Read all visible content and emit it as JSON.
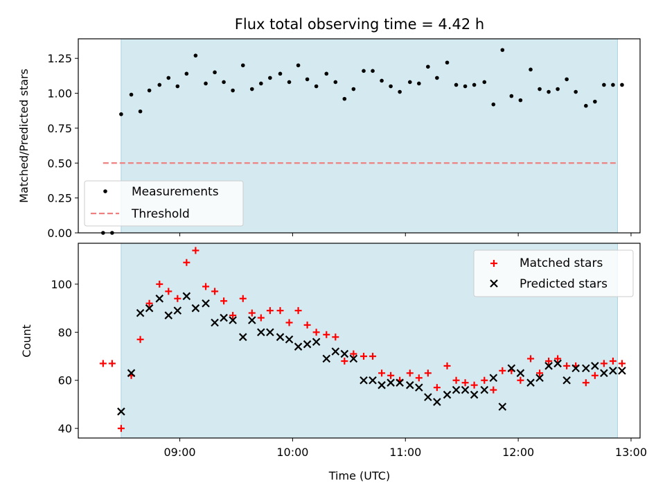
{
  "title": "Flux total observing time = 4.42 h",
  "xlabel": "Time (UTC)",
  "time_ticks": [
    {
      "t": 9,
      "label": "09:00"
    },
    {
      "t": 10,
      "label": "10:00"
    },
    {
      "t": 11,
      "label": "11:00"
    },
    {
      "t": 12,
      "label": "12:00"
    },
    {
      "t": 13,
      "label": "13:00"
    }
  ],
  "colors": {
    "shade": "#d4eaf0",
    "threshold": "#f08080",
    "matched": "#ff0000",
    "predicted": "#000000",
    "measurement": "#000000"
  },
  "chart_data": [
    {
      "type": "scatter",
      "name": "ratio",
      "ylabel": "Matched/Predicted stars",
      "xlim": [
        8.1,
        13.08
      ],
      "ylim": [
        0.0,
        1.39
      ],
      "shaded_interval": [
        8.48,
        12.88
      ],
      "yticks": [
        0.0,
        0.25,
        0.5,
        0.75,
        1.0,
        1.25
      ],
      "ytick_labels": [
        "0.00",
        "0.25",
        "0.50",
        "0.75",
        "1.00",
        "1.25"
      ],
      "legend": {
        "position": "lower-left",
        "entries": [
          "Measurements",
          "Threshold"
        ]
      },
      "threshold": {
        "name": "Threshold",
        "y": 0.5,
        "x": [
          8.32,
          12.88
        ]
      },
      "series": [
        {
          "name": "Measurements",
          "x": [
            8.32,
            8.4,
            8.48,
            8.57,
            8.65,
            8.73,
            8.82,
            8.9,
            8.98,
            9.06,
            9.14,
            9.23,
            9.31,
            9.39,
            9.47,
            9.56,
            9.64,
            9.72,
            9.8,
            9.89,
            9.97,
            10.05,
            10.13,
            10.21,
            10.3,
            10.38,
            10.46,
            10.54,
            10.63,
            10.71,
            10.79,
            10.87,
            10.95,
            11.04,
            11.12,
            11.2,
            11.28,
            11.37,
            11.45,
            11.53,
            11.61,
            11.7,
            11.78,
            11.86,
            11.94,
            12.02,
            12.11,
            12.19,
            12.27,
            12.35,
            12.43,
            12.51,
            12.6,
            12.68,
            12.76,
            12.84,
            12.92
          ],
          "y": [
            0.0,
            0.0,
            0.85,
            0.99,
            0.87,
            1.02,
            1.06,
            1.11,
            1.05,
            1.14,
            1.27,
            1.07,
            1.15,
            1.08,
            1.02,
            1.2,
            1.03,
            1.07,
            1.11,
            1.14,
            1.08,
            1.2,
            1.1,
            1.05,
            1.14,
            1.08,
            0.96,
            1.03,
            1.16,
            1.16,
            1.09,
            1.05,
            1.01,
            1.08,
            1.07,
            1.19,
            1.11,
            1.22,
            1.06,
            1.05,
            1.06,
            1.08,
            0.92,
            1.31,
            0.98,
            0.95,
            1.17,
            1.03,
            1.01,
            1.03,
            1.1,
            1.01,
            0.91,
            0.94,
            1.06,
            1.06,
            1.06
          ]
        }
      ]
    },
    {
      "type": "scatter",
      "name": "counts",
      "ylabel": "Count",
      "xlim": [
        8.1,
        13.08
      ],
      "ylim": [
        36,
        117
      ],
      "shaded_interval": [
        8.48,
        12.88
      ],
      "yticks": [
        40,
        60,
        80,
        100
      ],
      "ytick_labels": [
        "40",
        "60",
        "80",
        "100"
      ],
      "legend": {
        "position": "top-right",
        "entries": [
          "Matched stars",
          "Predicted stars"
        ]
      },
      "series": [
        {
          "name": "Matched stars",
          "marker": "plus",
          "x": [
            8.32,
            8.4,
            8.48,
            8.57,
            8.65,
            8.73,
            8.82,
            8.9,
            8.98,
            9.06,
            9.14,
            9.23,
            9.31,
            9.39,
            9.47,
            9.56,
            9.64,
            9.72,
            9.8,
            9.89,
            9.97,
            10.05,
            10.13,
            10.21,
            10.3,
            10.38,
            10.46,
            10.54,
            10.63,
            10.71,
            10.79,
            10.87,
            10.95,
            11.04,
            11.12,
            11.2,
            11.28,
            11.37,
            11.45,
            11.53,
            11.61,
            11.7,
            11.78,
            11.86,
            11.94,
            12.02,
            12.11,
            12.19,
            12.27,
            12.35,
            12.43,
            12.51,
            12.6,
            12.68,
            12.76,
            12.84,
            12.92
          ],
          "y": [
            67,
            67,
            40,
            62,
            77,
            92,
            100,
            97,
            94,
            109,
            114,
            99,
            97,
            93,
            87,
            94,
            88,
            86,
            89,
            89,
            84,
            89,
            83,
            80,
            79,
            78,
            68,
            71,
            70,
            70,
            63,
            62,
            60,
            63,
            61,
            63,
            57,
            66,
            60,
            59,
            58,
            60,
            56,
            64,
            64,
            60,
            69,
            63,
            68,
            69,
            66,
            66,
            59,
            62,
            67,
            68,
            67
          ]
        },
        {
          "name": "Predicted stars",
          "marker": "x",
          "x": [
            8.48,
            8.57,
            8.65,
            8.73,
            8.82,
            8.9,
            8.98,
            9.06,
            9.14,
            9.23,
            9.31,
            9.39,
            9.47,
            9.56,
            9.64,
            9.72,
            9.8,
            9.89,
            9.97,
            10.05,
            10.13,
            10.21,
            10.3,
            10.38,
            10.46,
            10.54,
            10.63,
            10.71,
            10.79,
            10.87,
            10.95,
            11.04,
            11.12,
            11.2,
            11.28,
            11.37,
            11.45,
            11.53,
            11.61,
            11.7,
            11.78,
            11.86,
            11.94,
            12.02,
            12.11,
            12.19,
            12.27,
            12.35,
            12.43,
            12.51,
            12.6,
            12.68,
            12.76,
            12.84,
            12.92
          ],
          "y": [
            47,
            63,
            88,
            90,
            94,
            87,
            89,
            95,
            90,
            92,
            84,
            86,
            85,
            78,
            85,
            80,
            80,
            78,
            77,
            74,
            75,
            76,
            69,
            72,
            71,
            69,
            60,
            60,
            58,
            59,
            59,
            58,
            57,
            53,
            51,
            54,
            56,
            56,
            54,
            56,
            61,
            49,
            65,
            63,
            59,
            61,
            66,
            67,
            60,
            65,
            65,
            66,
            63,
            64,
            64
          ]
        }
      ]
    }
  ]
}
